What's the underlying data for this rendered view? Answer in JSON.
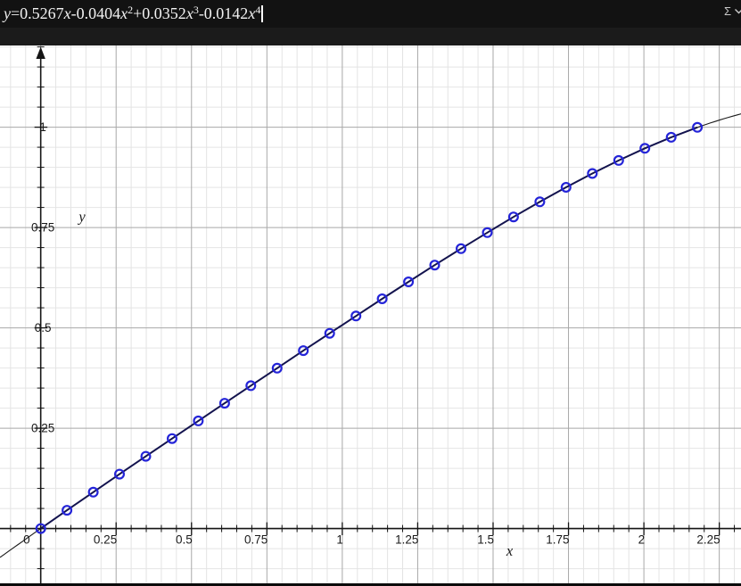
{
  "header": {
    "equation_segments": [
      {
        "t": "y",
        "it": true
      },
      {
        "t": "=0.5267"
      },
      {
        "t": "x",
        "it": true
      },
      {
        "t": "-0.0404"
      },
      {
        "t": "x",
        "it": true
      },
      {
        "t": "2",
        "sup": true
      },
      {
        "t": "+0.0352"
      },
      {
        "t": "x",
        "it": true
      },
      {
        "t": "3",
        "sup": true
      },
      {
        "t": "-0.0142"
      },
      {
        "t": "x",
        "it": true
      },
      {
        "t": "4",
        "sup": true
      }
    ],
    "sigma_label": "Σ"
  },
  "chart_data": {
    "type": "scatter",
    "title": "",
    "equation_fit": "y=0.5267x-0.0404x^2+0.0352x^3-0.0142x^4",
    "fit_coefficients": [
      0,
      0.5267,
      -0.0404,
      0.0352,
      -0.0142
    ],
    "points": [
      [
        0,
        0
      ],
      [
        0.0871,
        0.0456
      ],
      [
        0.1742,
        0.0907
      ],
      [
        0.2613,
        0.1354
      ],
      [
        0.3484,
        0.1799
      ],
      [
        0.4355,
        0.2241
      ],
      [
        0.5226,
        0.2682
      ],
      [
        0.6097,
        0.3121
      ],
      [
        0.6968,
        0.3559
      ],
      [
        0.7839,
        0.3996
      ],
      [
        0.871,
        0.4432
      ],
      [
        0.9581,
        0.4865
      ],
      [
        1.0452,
        0.5296
      ],
      [
        1.1323,
        0.5723
      ],
      [
        1.2194,
        0.6146
      ],
      [
        1.3065,
        0.6563
      ],
      [
        1.3936,
        0.6973
      ],
      [
        1.4807,
        0.7373
      ],
      [
        1.5678,
        0.7763
      ],
      [
        1.6549,
        0.814
      ],
      [
        1.742,
        0.8502
      ],
      [
        1.8291,
        0.8847
      ],
      [
        1.9162,
        0.9171
      ],
      [
        2.0033,
        0.9473
      ],
      [
        2.0904,
        0.9749
      ],
      [
        2.1775,
        0.9995
      ]
    ],
    "x_ticks": [
      {
        "v": 0,
        "label": "0"
      },
      {
        "v": 0.25,
        "label": "0.25"
      },
      {
        "v": 0.5,
        "label": "0.5"
      },
      {
        "v": 0.75,
        "label": "0.75"
      },
      {
        "v": 1,
        "label": "1"
      },
      {
        "v": 1.25,
        "label": "1.25"
      },
      {
        "v": 1.5,
        "label": "1.5"
      },
      {
        "v": 1.75,
        "label": "1.75"
      },
      {
        "v": 2,
        "label": "2"
      },
      {
        "v": 2.25,
        "label": "2.25"
      }
    ],
    "y_ticks": [
      {
        "v": 0.25,
        "label": "0.25"
      },
      {
        "v": 0.5,
        "label": "0.5"
      },
      {
        "v": 0.75,
        "label": "0.75"
      },
      {
        "v": 1,
        "label": "1"
      }
    ],
    "x_axis_label": "x",
    "y_axis_label": "y",
    "xlim": [
      -0.135,
      2.322
    ],
    "ylim": [
      -0.1365,
      1.2035
    ],
    "minor_grid_step": 0.05,
    "major_grid_step": 0.25,
    "grid": true,
    "legend": "none",
    "colors": {
      "background": "#ffffff",
      "minor_grid": "#e4e4e4",
      "major_grid": "#a8a8a8",
      "axis": "#151515",
      "fit_curve": "#1a1a1a",
      "data_line": "#13134e",
      "marker": "#2424d8",
      "tick_label": "#1a1a1a"
    }
  }
}
